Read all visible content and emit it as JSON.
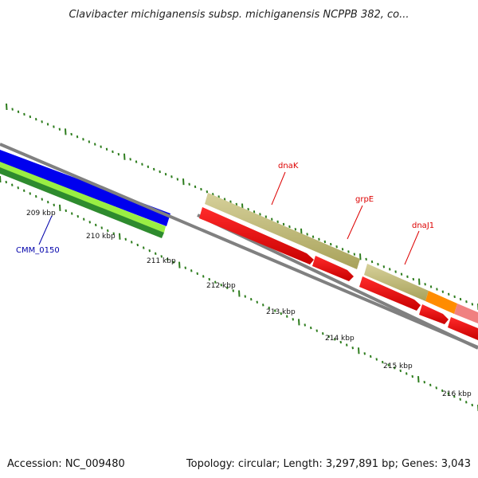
{
  "title": "Clavibacter michiganensis subsp. michiganensis NCPPB 382, co...",
  "footer": {
    "accession": "Accession: NC_009480",
    "summary": "Topology: circular; Length: 3,297,891 bp; Genes: 3,043"
  },
  "colors": {
    "backbone": "#808080",
    "tick": "#2e7d1e",
    "blue_track": "#0000ee",
    "green_track": "#2e8b2e",
    "lightgreen_track": "#99ee44",
    "khaki_gene": "#bdb76b",
    "red_gene": "#ee0000",
    "orange_gene": "#ff8c00",
    "pink_gene": "#f08080",
    "red_label": "#dd0000",
    "blue_label": "#0000aa"
  },
  "scale_ticks": [
    {
      "label": "209 kbp"
    },
    {
      "label": "210 kbp"
    },
    {
      "label": "211 kbp"
    },
    {
      "label": "212 kbp"
    },
    {
      "label": "213 kbp"
    },
    {
      "label": "214 kbp"
    },
    {
      "label": "215 kbp"
    },
    {
      "label": "216 kbp"
    }
  ],
  "gene_labels": [
    {
      "name": "dnaK",
      "color": "red"
    },
    {
      "name": "grpE",
      "color": "red"
    },
    {
      "name": "dnaJ1",
      "color": "red"
    },
    {
      "name": "CMM_0150",
      "color": "blue"
    }
  ]
}
